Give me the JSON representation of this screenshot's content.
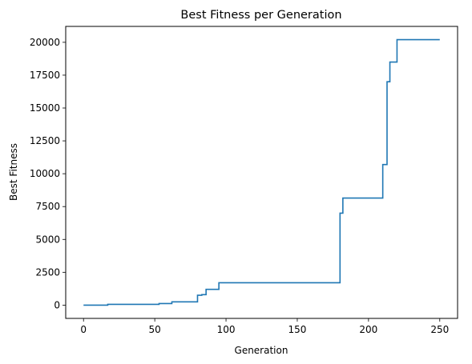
{
  "chart_data": {
    "type": "line",
    "title": "Best Fitness per Generation",
    "xlabel": "Generation",
    "ylabel": "Best Fitness",
    "xlim": [
      -12.5,
      262.5
    ],
    "ylim": [
      -1010,
      21210
    ],
    "xticks": [
      0,
      50,
      100,
      150,
      200,
      250
    ],
    "yticks": [
      0,
      2500,
      5000,
      7500,
      10000,
      12500,
      15000,
      17500,
      20000
    ],
    "xtick_labels": [
      "0",
      "50",
      "100",
      "150",
      "200",
      "250"
    ],
    "ytick_labels": [
      "0",
      "2500",
      "5000",
      "7500",
      "10000",
      "12500",
      "15000",
      "17500",
      "20000"
    ],
    "grid": false,
    "line_color": "#1f77b4",
    "series": [
      {
        "x": [
          0,
          17,
          17,
          53,
          53,
          62,
          62,
          80,
          80,
          83,
          83,
          86,
          86,
          95,
          95,
          180,
          180,
          182,
          182,
          210,
          210,
          213,
          213,
          215,
          215,
          217,
          217,
          220,
          220,
          250
        ],
        "y": [
          0,
          0,
          60,
          60,
          120,
          120,
          250,
          250,
          750,
          750,
          800,
          800,
          1200,
          1200,
          1700,
          1700,
          7000,
          7000,
          8150,
          8150,
          10700,
          10700,
          17000,
          17000,
          18500,
          18500,
          18500,
          18500,
          20200,
          20200
        ]
      }
    ]
  }
}
